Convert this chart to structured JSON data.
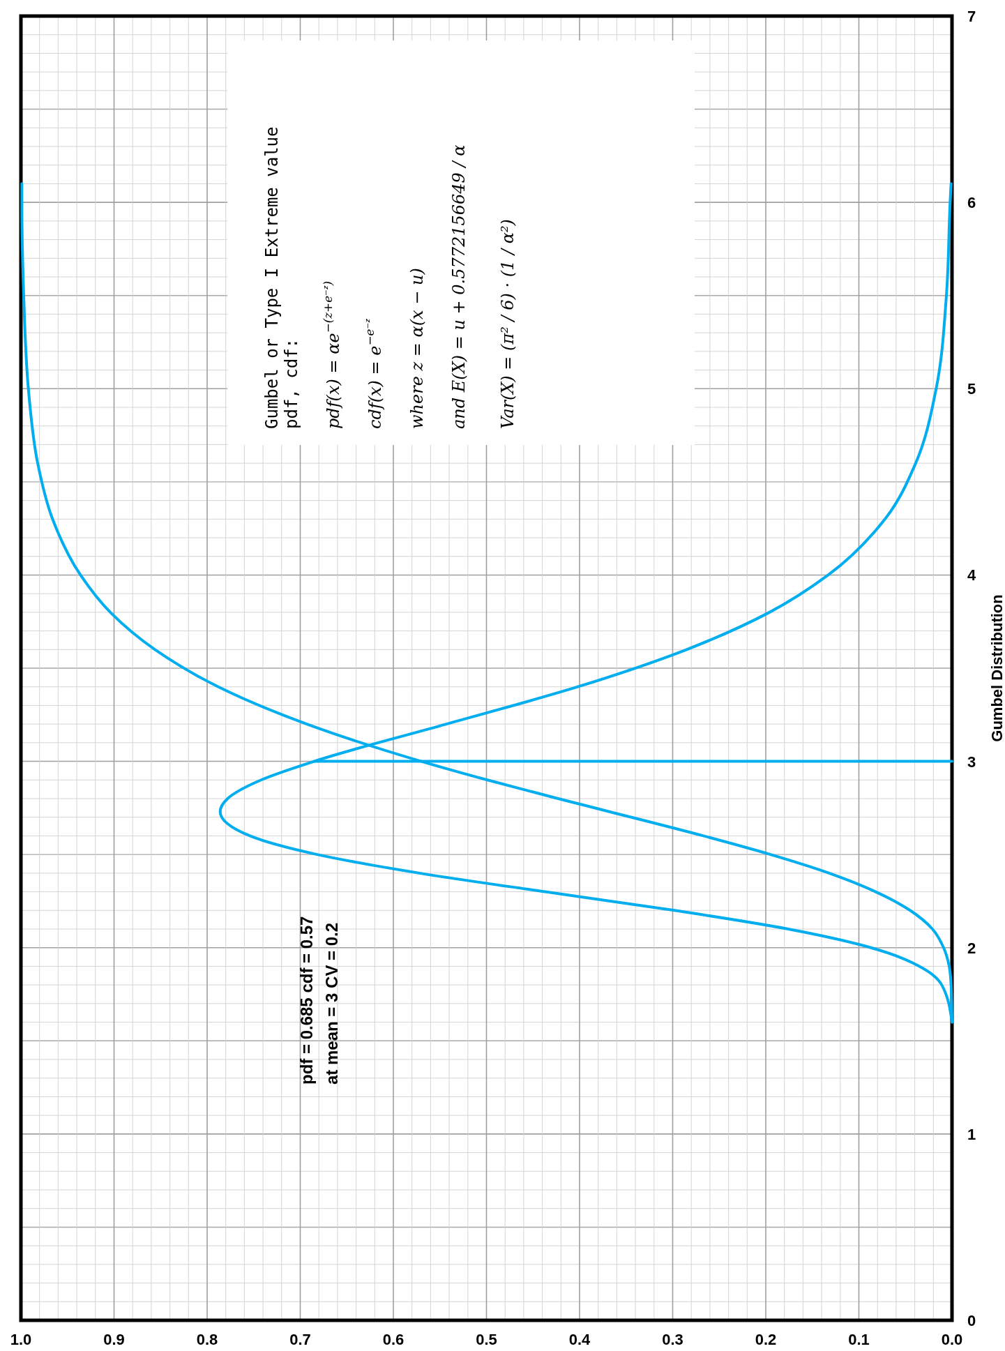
{
  "chart_data": {
    "type": "line",
    "ylabel": "Gumbel Distribution",
    "series": [
      {
        "color": "#00aeef",
        "values": [
          1.6,
          1.8,
          1.9,
          2.0,
          2.1,
          2.2,
          2.3,
          2.4,
          2.5,
          2.6,
          2.73,
          2.8,
          2.9,
          3.0,
          3.2,
          3.4,
          3.6,
          3.8,
          4.0,
          4.3,
          4.6,
          5.0,
          5.5,
          6.0,
          6.1
        ],
        "x": [
          0.0,
          0.011,
          0.035,
          0.087,
          0.176,
          0.298,
          0.437,
          0.572,
          0.682,
          0.754,
          0.786,
          0.778,
          0.742,
          0.685,
          0.543,
          0.402,
          0.285,
          0.196,
          0.133,
          0.072,
          0.039,
          0.017,
          0.006,
          0.002,
          0.001
        ]
      },
      {
        "color": "#00aeef",
        "values": [
          1.6,
          1.8,
          1.9,
          2.0,
          2.1,
          2.2,
          2.3,
          2.4,
          2.5,
          2.6,
          2.73,
          2.8,
          2.9,
          3.0,
          3.2,
          3.4,
          3.6,
          3.8,
          4.0,
          4.3,
          4.6,
          5.0,
          5.5,
          6.0,
          6.1
        ],
        "x": [
          0.0,
          0.001,
          0.003,
          0.009,
          0.021,
          0.045,
          0.082,
          0.132,
          0.195,
          0.267,
          0.368,
          0.423,
          0.499,
          0.57,
          0.693,
          0.788,
          0.856,
          0.904,
          0.936,
          0.966,
          0.982,
          0.992,
          0.997,
          0.999,
          0.999
        ]
      },
      {
        "color": "#00aeef",
        "values": [
          3,
          3
        ],
        "x": [
          0,
          0.685
        ]
      }
    ],
    "ylim": [
      0,
      7
    ],
    "xlim": [
      1,
      0
    ],
    "yticks": [
      0,
      1,
      2,
      3,
      4,
      5,
      6,
      7
    ],
    "xticks": [
      {
        "value": 0,
        "label": "0.0"
      },
      {
        "value": 0.1,
        "label": "0.1"
      },
      {
        "value": 0.2,
        "label": "0.2"
      },
      {
        "value": 0.3,
        "label": "0.3"
      },
      {
        "value": 0.4,
        "label": "0.4"
      },
      {
        "value": 0.5,
        "label": "0.5"
      },
      {
        "value": 0.6,
        "label": "0.6"
      },
      {
        "value": 0.7,
        "label": "0.7"
      },
      {
        "value": 0.8,
        "label": "0.8"
      },
      {
        "value": 0.9,
        "label": "0.9"
      },
      {
        "value": 1,
        "label": "1.0"
      }
    ],
    "grid": true,
    "annotations": [
      "pdf = 0.685 cdf = 0.57",
      "at mean = 3 CV = 0.2",
      "Gumbel or Type I Extreme value",
      "pdf, cdf:",
      "pdf(x) = αe$^{−(z+e⁻ᶻ)}$",
      "cdf(x) = e$^{−e⁻ᶻ}$",
      "where z = α(x − u)",
      "and E(X) = u + 0.5772156649 / α",
      "Var(X) = (π² / 6) · (1 / α²)"
    ]
  }
}
